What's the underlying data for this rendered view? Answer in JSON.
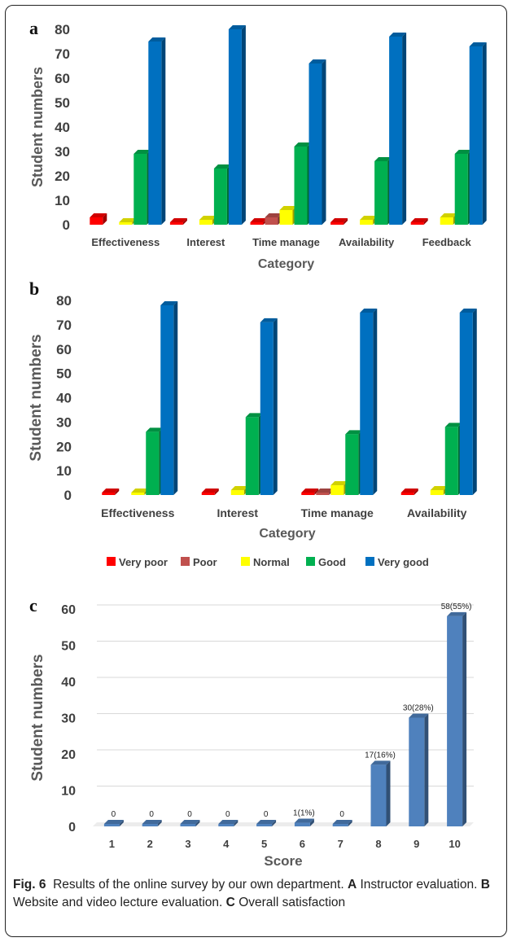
{
  "colors": {
    "very_poor": "#ff0000",
    "poor": "#c0504d",
    "normal": "#ffff00",
    "good": "#00b050",
    "very_good": "#0070c0",
    "score_bar": "#4f81bd"
  },
  "legend": [
    "Very poor",
    "Poor",
    "Normal",
    "Good",
    "Very good"
  ],
  "panels": {
    "a": {
      "letter": "a"
    },
    "b": {
      "letter": "b"
    },
    "c": {
      "letter": "c"
    }
  },
  "caption": {
    "fig_label": "Fig. 6",
    "text1": "Results of the online survey by our own department.",
    "label_a": "A",
    "text_a": "Instructor evaluation.",
    "label_b": "B",
    "text_b": "Website and video lecture evaluation.",
    "label_c": "C",
    "text_c": "Overall satisfaction"
  },
  "chart_data": [
    {
      "type": "bar",
      "panel": "a",
      "xlabel": "Category",
      "ylabel": "Student numbers",
      "ylim": [
        0,
        80
      ],
      "yticks": [
        0,
        10,
        20,
        30,
        40,
        50,
        60,
        70,
        80
      ],
      "grid": false,
      "categories": [
        "Effectiveness",
        "Interest",
        "Time manage",
        "Availability",
        "Feedback"
      ],
      "series": [
        {
          "name": "Very poor",
          "values": [
            3,
            1,
            1,
            1,
            1
          ]
        },
        {
          "name": "Poor",
          "values": [
            0,
            0,
            3,
            0,
            0
          ]
        },
        {
          "name": "Normal",
          "values": [
            1,
            2,
            6,
            2,
            3
          ]
        },
        {
          "name": "Good",
          "values": [
            29,
            23,
            32,
            26,
            29
          ]
        },
        {
          "name": "Very good",
          "values": [
            75,
            80,
            66,
            77,
            73
          ]
        }
      ]
    },
    {
      "type": "bar",
      "panel": "b",
      "xlabel": "Category",
      "ylabel": "Student numbers",
      "ylim": [
        0,
        80
      ],
      "yticks": [
        0,
        10,
        20,
        30,
        40,
        50,
        60,
        70,
        80
      ],
      "grid": false,
      "legend_position": "bottom",
      "categories": [
        "Effectiveness",
        "Interest",
        "Time manage",
        "Availability"
      ],
      "series": [
        {
          "name": "Very poor",
          "values": [
            1,
            1,
            1,
            1
          ]
        },
        {
          "name": "Poor",
          "values": [
            0,
            0,
            1,
            0
          ]
        },
        {
          "name": "Normal",
          "values": [
            1,
            2,
            4,
            2
          ]
        },
        {
          "name": "Good",
          "values": [
            26,
            32,
            25,
            28
          ]
        },
        {
          "name": "Very good",
          "values": [
            78,
            71,
            75,
            75
          ]
        }
      ]
    },
    {
      "type": "bar",
      "panel": "c",
      "xlabel": "Score",
      "ylabel": "Student numbers",
      "ylim": [
        0,
        60
      ],
      "yticks": [
        0,
        10,
        20,
        30,
        40,
        50,
        60
      ],
      "grid": true,
      "categories": [
        "1",
        "2",
        "3",
        "4",
        "5",
        "6",
        "7",
        "8",
        "9",
        "10"
      ],
      "values": [
        0,
        0,
        0,
        0,
        0,
        1,
        0,
        17,
        30,
        58
      ],
      "data_labels": [
        "0",
        "0",
        "0",
        "0",
        "0",
        "1(1%)",
        "0",
        "17(16%)",
        "30(28%)",
        "58(55%)"
      ]
    }
  ]
}
